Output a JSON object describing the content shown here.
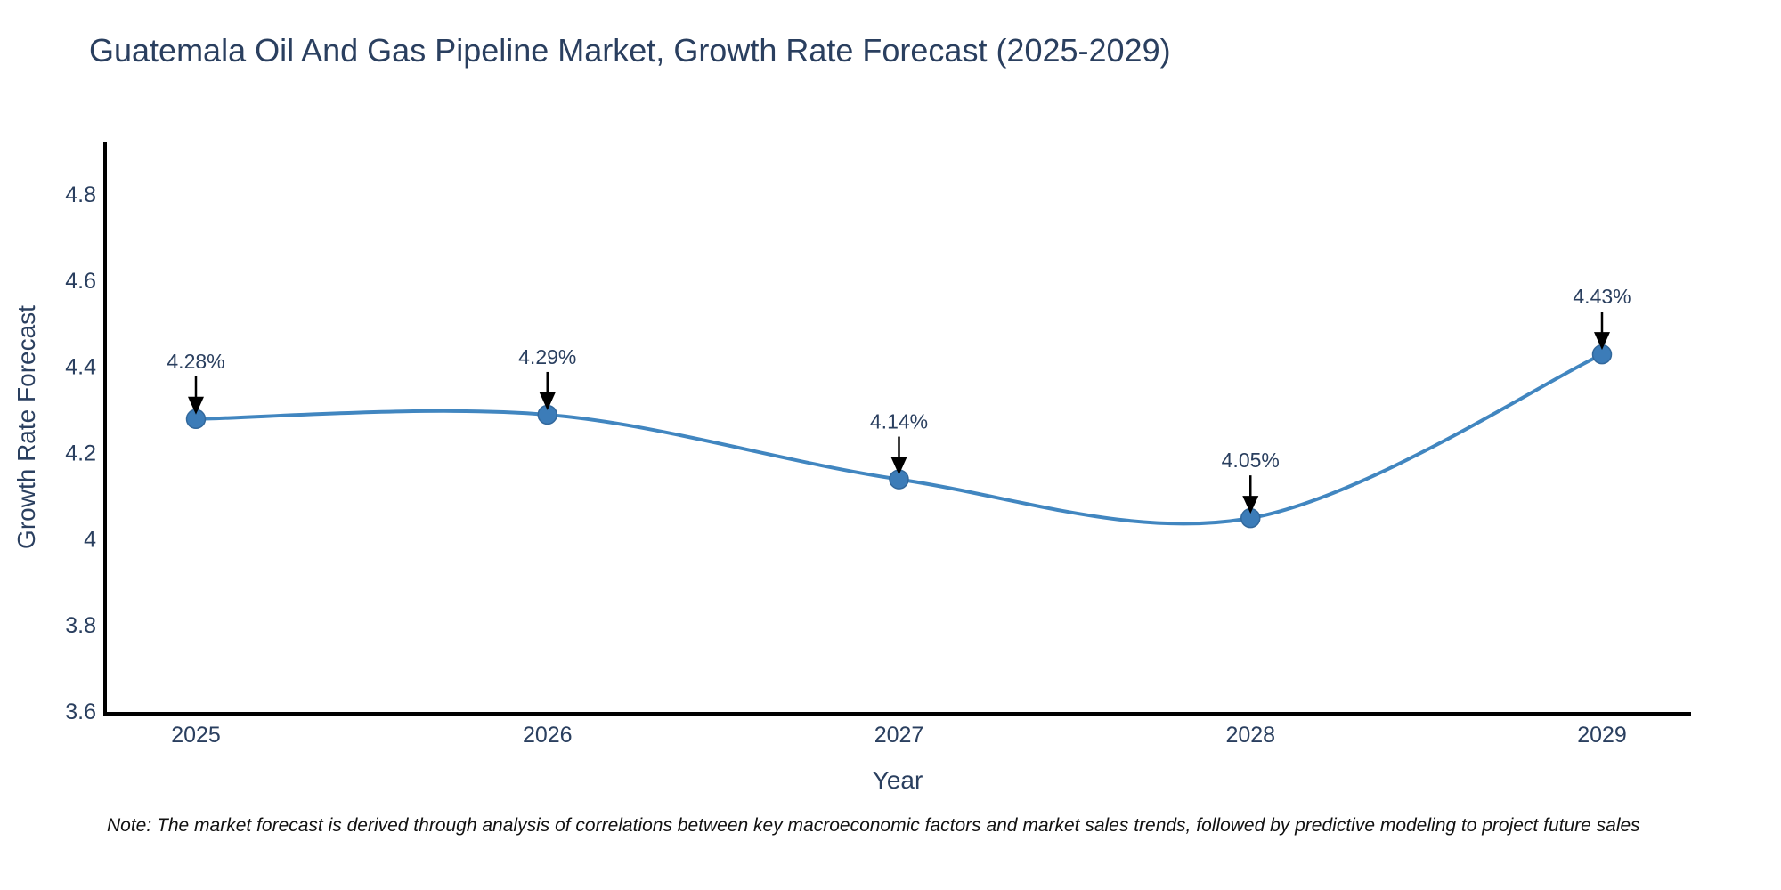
{
  "page": {
    "background": "#ffffff"
  },
  "chart_data": {
    "type": "line",
    "title": "Guatemala Oil And Gas Pipeline Market, Growth Rate Forecast (2025-2029)",
    "xlabel": "Year",
    "ylabel": "Growth Rate Forecast",
    "x": [
      2025,
      2026,
      2027,
      2028,
      2029
    ],
    "x_tick_labels": [
      "2025",
      "2026",
      "2027",
      "2028",
      "2029"
    ],
    "series": [
      {
        "name": "Growth Rate Forecast",
        "values": [
          4.28,
          4.29,
          4.14,
          4.05,
          4.43
        ]
      }
    ],
    "point_labels": [
      "4.28%",
      "4.29%",
      "4.14%",
      "4.05%",
      "4.43%"
    ],
    "ytick_values": [
      4.8,
      4.6,
      4.4,
      4.2,
      4.0,
      3.8,
      3.6
    ],
    "ytick_labels": [
      "4.8",
      "4.6",
      "4.4",
      "4.2",
      "4",
      "3.8",
      "3.6"
    ],
    "ylim": [
      3.595,
      4.92
    ],
    "grid": false,
    "legend_position": "none",
    "line_shape": "spline",
    "colors": {
      "line": "#4186c0",
      "marker": "#3c7cb8",
      "marker_edge": "#32689c",
      "axis": "#000000",
      "text": "#2a3f5f",
      "annotation_arrow": "#000000",
      "note_text": "#111111"
    },
    "note": "Note: The market forecast is derived through analysis of correlations between key macroeconomic factors and market sales trends, followed by predictive modeling to project future sales"
  }
}
